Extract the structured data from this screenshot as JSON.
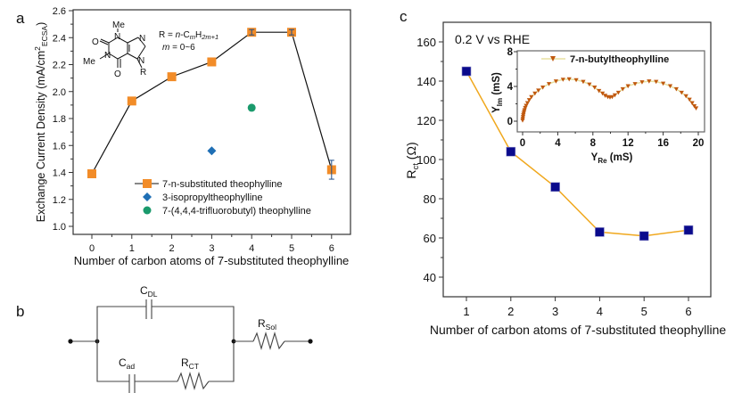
{
  "chart_data": [
    {
      "panel": "a",
      "type": "scatter",
      "xlabel": "Number of carbon atoms of 7-substituted theophylline",
      "ylabel_main": "Exchange Current Density (mA/cm",
      "ylabel_sup": "2",
      "ylabel_sub": "ECSA",
      "ylabel_close": ")",
      "xlim": [
        -0.5,
        6.5
      ],
      "ylim": [
        0.95,
        2.6
      ],
      "xticks": [
        "0",
        "1",
        "2",
        "3",
        "4",
        "5",
        "6"
      ],
      "yticks": [
        "1.0",
        "1.2",
        "1.4",
        "1.6",
        "1.8",
        "2.0",
        "2.2",
        "2.4",
        "2.6"
      ],
      "series": [
        {
          "name": "7-n-substituted theophylline",
          "marker": "square",
          "color": "#f28c28",
          "line": true,
          "x": [
            0,
            1,
            2,
            3,
            4,
            5,
            6
          ],
          "y": [
            1.39,
            1.93,
            2.11,
            2.22,
            2.44,
            2.44,
            1.42
          ],
          "err": [
            0,
            0,
            0,
            0,
            0.02,
            0.02,
            0.07
          ]
        },
        {
          "name": "3-isopropyltheophylline",
          "marker": "diamond",
          "color": "#1f6fb5",
          "line": false,
          "x": [
            3
          ],
          "y": [
            1.56
          ]
        },
        {
          "name": "7-(4,4,4-trifluorobutyl) theophylline",
          "marker": "circle",
          "color": "#1a9a6c",
          "line": false,
          "x": [
            4
          ],
          "y": [
            1.88
          ]
        }
      ],
      "legend": "bottom-center",
      "structure": {
        "atoms": [
          "Me",
          "N",
          "N",
          "N",
          "N",
          "O",
          "O",
          "Me",
          "R"
        ],
        "formula_r": "R = ",
        "formula_n": "n",
        "formula_c": "-C",
        "formula_m": "m",
        "formula_h": "H",
        "formula_sub": "2m+1",
        "formula_range_m": "m",
        "formula_range": " = 0~6"
      }
    },
    {
      "panel": "c",
      "type": "line",
      "xlabel": "Number of carbon atoms of 7-substituted theophylline",
      "ylabel_main": "R",
      "ylabel_sub": "ct",
      "ylabel_unit": " (Ω)",
      "annotation": "0.2 V vs RHE",
      "xlim": [
        0.5,
        6.5
      ],
      "ylim": [
        30,
        170
      ],
      "xticks": [
        "1",
        "2",
        "3",
        "4",
        "5",
        "6"
      ],
      "yticks": [
        "40",
        "60",
        "80",
        "100",
        "120",
        "140",
        "160"
      ],
      "series": [
        {
          "name": "Rct",
          "marker": "square",
          "color": "#0a0a8c",
          "line_color": "#f0a81e",
          "x": [
            1,
            2,
            3,
            4,
            5,
            6
          ],
          "y": [
            145,
            104,
            86,
            63,
            61,
            64
          ]
        }
      ],
      "inset": {
        "type": "line",
        "xlabel_main": "Y",
        "xlabel_sub": "Re",
        "xlabel_unit": " (mS)",
        "ylabel_main": "Y",
        "ylabel_sub": "Im",
        "ylabel_unit": " (mS)",
        "xlim": [
          -0.5,
          20.5
        ],
        "ylim": [
          -0.9,
          8
        ],
        "xticks": [
          "0",
          "4",
          "8",
          "12",
          "16",
          "20"
        ],
        "yticks": [
          "0",
          "4",
          "8"
        ],
        "legend": "7-n-butyltheophylline",
        "marker_color": "#c0580e",
        "line_color": "#e8e0a0",
        "x": [
          0,
          0.02,
          0.05,
          0.08,
          0.12,
          0.17,
          0.22,
          0.3,
          0.4,
          0.55,
          0.75,
          1.0,
          1.4,
          1.8,
          2.3,
          3.0,
          3.8,
          4.6,
          5.3,
          6.1,
          6.9,
          7.6,
          8.2,
          8.7,
          9.1,
          9.4,
          9.7,
          9.95,
          10.2,
          10.5,
          10.9,
          11.4,
          12.0,
          12.8,
          13.6,
          14.4,
          15.2,
          16.0,
          16.8,
          17.5,
          18.1,
          18.6,
          19.0,
          19.3,
          19.55,
          19.75
        ],
        "y": [
          0.1,
          0.3,
          0.5,
          0.7,
          0.9,
          1.1,
          1.3,
          1.55,
          1.8,
          2.1,
          2.45,
          2.8,
          3.2,
          3.55,
          3.9,
          4.3,
          4.6,
          4.8,
          4.85,
          4.75,
          4.55,
          4.25,
          3.9,
          3.5,
          3.2,
          2.95,
          2.8,
          2.75,
          2.8,
          3.0,
          3.3,
          3.7,
          4.05,
          4.3,
          4.5,
          4.6,
          4.55,
          4.35,
          4.05,
          3.7,
          3.3,
          2.9,
          2.5,
          2.1,
          1.75,
          1.5
        ]
      }
    }
  ],
  "panel_labels": {
    "a": "a",
    "b": "b",
    "c": "c"
  },
  "circuit": {
    "c_dl_main": "C",
    "c_dl_sub": "DL",
    "c_ad_main": "C",
    "c_ad_sub": "ad",
    "r_ct_main": "R",
    "r_ct_sub": "CT",
    "r_sol_main": "R",
    "r_sol_sub": "Sol"
  }
}
